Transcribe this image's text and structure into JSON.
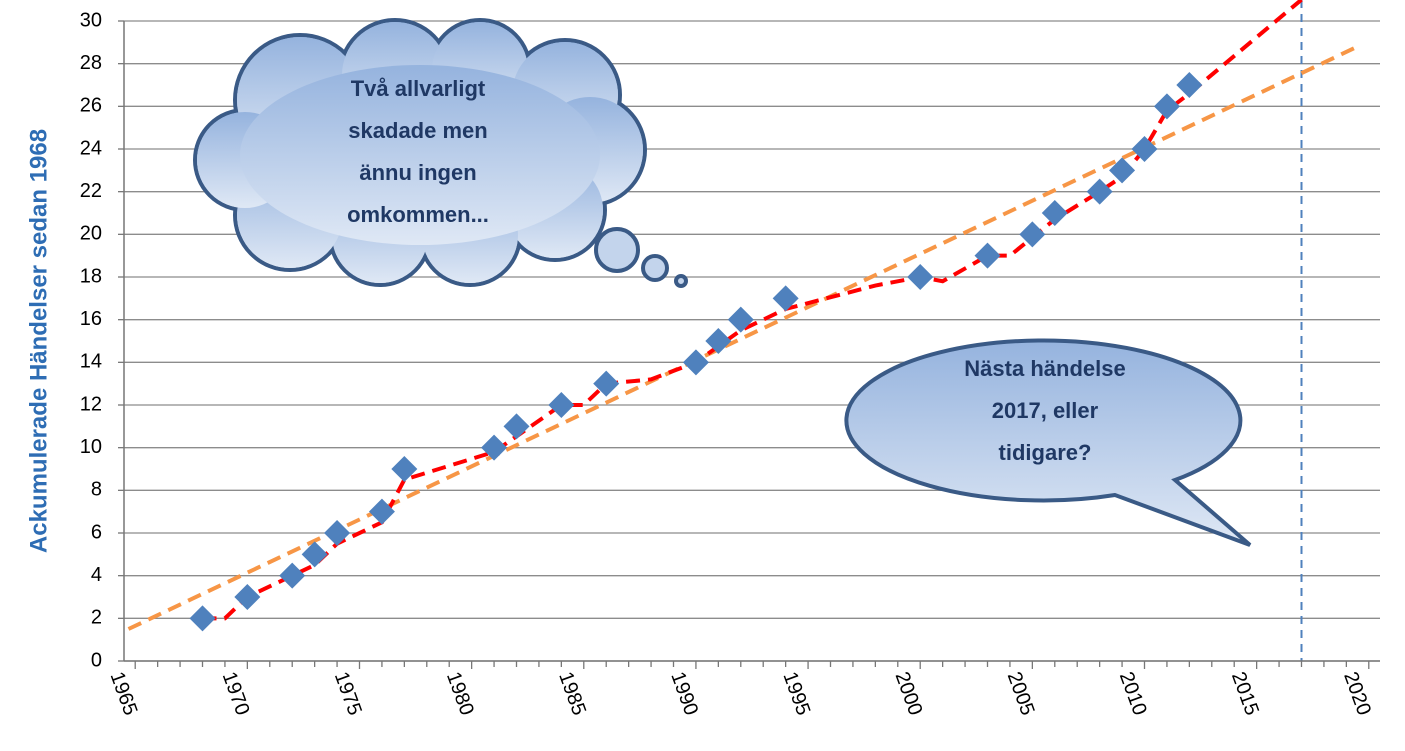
{
  "chart_data": {
    "type": "scatter",
    "ylabel": "Ackumulerade Händelser sedan 1968",
    "xlim": [
      1964.5,
      2020.5
    ],
    "ylim": [
      0,
      30
    ],
    "xticks": [
      1965,
      1970,
      1975,
      1980,
      1985,
      1990,
      1995,
      2000,
      2005,
      2010,
      2015,
      2020
    ],
    "xminorticks": [
      1966,
      1967,
      1968,
      1969,
      1971,
      1972,
      1973,
      1974,
      1976,
      1977,
      1978,
      1979,
      1981,
      1982,
      1983,
      1984,
      1986,
      1987,
      1988,
      1989,
      1991,
      1992,
      1993,
      1994,
      1996,
      1997,
      1998,
      1999,
      2001,
      2002,
      2003,
      2004,
      2006,
      2007,
      2008,
      2009,
      2011,
      2012,
      2013,
      2014,
      2016,
      2017,
      2018,
      2019
    ],
    "yticks": [
      0,
      2,
      4,
      6,
      8,
      10,
      12,
      14,
      16,
      18,
      20,
      22,
      24,
      26,
      28,
      30
    ],
    "grid": true,
    "vline_x": 2017,
    "vline_color": "#4f81bd",
    "series": [
      {
        "style": "marker",
        "color": "#4f81bd",
        "x": [
          1968,
          1970,
          1972,
          1973,
          1974,
          1976,
          1977,
          1981,
          1982,
          1984,
          1986,
          1990,
          1991,
          1992,
          1994,
          2000,
          2003,
          2005,
          2006,
          2008,
          2009,
          2010,
          2011,
          2012
        ],
        "values": [
          2,
          3,
          4,
          5,
          6,
          7,
          9,
          10,
          11,
          12,
          13,
          14,
          15,
          16,
          17,
          18,
          19,
          20,
          21,
          22,
          23,
          24,
          26,
          27
        ]
      },
      {
        "style": "line",
        "color": "#ff0000",
        "x": [
          1968,
          1969,
          1970,
          1972,
          1973,
          1974,
          1976,
          1977,
          1981,
          1984,
          1985,
          1986,
          1988,
          1990,
          1992,
          1994,
          1998,
          2000,
          2001,
          2003,
          2004,
          2006,
          2008,
          2009,
          2010,
          2011,
          2012,
          2017
        ],
        "values": [
          2,
          2,
          3,
          4,
          4.5,
          5.5,
          6.5,
          8.5,
          9.8,
          12,
          12,
          13,
          13.2,
          14,
          15.5,
          16.5,
          17.6,
          18,
          17.8,
          19,
          19,
          20.7,
          22,
          22.7,
          24,
          25.8,
          26.6,
          31
        ]
      },
      {
        "style": "line",
        "color": "#f79646",
        "x": [
          1964.7,
          2019.5
        ],
        "values": [
          1.5,
          28.8
        ]
      }
    ],
    "annotations": [
      {
        "lines": [
          "Två allvarligt",
          "skadade men",
          "ännu ingen",
          "omkommen..."
        ]
      },
      {
        "lines": [
          "Nästa händelse",
          "2017, eller",
          "tidigare?"
        ]
      }
    ]
  }
}
